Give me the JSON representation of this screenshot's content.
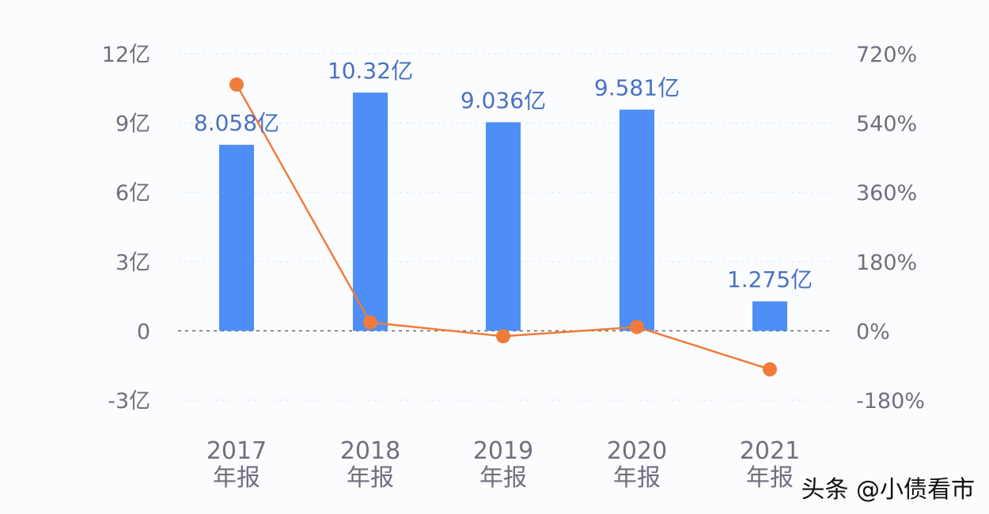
{
  "chart_data": {
    "type": "bar",
    "categories": [
      [
        "2017",
        "年报"
      ],
      [
        "2018",
        "年报"
      ],
      [
        "2019",
        "年报"
      ],
      [
        "2020",
        "年报"
      ],
      [
        "2021",
        "年报"
      ]
    ],
    "bar_values": [
      8.058,
      10.32,
      9.036,
      9.581,
      1.275
    ],
    "bar_labels": [
      "8.058亿",
      "10.32亿",
      "9.036亿",
      "9.581亿",
      "1.275亿"
    ],
    "line_values": [
      640,
      22,
      -14,
      10,
      -100
    ],
    "left_axis": {
      "ticks": [
        12,
        9,
        6,
        3,
        0,
        -3
      ],
      "tick_labels": [
        "12亿",
        "9亿",
        "6亿",
        "3亿",
        "0",
        "-3亿"
      ],
      "ylim": [
        -3,
        12
      ]
    },
    "right_axis": {
      "ticks": [
        720,
        540,
        360,
        180,
        0,
        -180
      ],
      "tick_labels": [
        "720%",
        "540%",
        "360%",
        "180%",
        "0%",
        "-180%"
      ],
      "ylim": [
        -180,
        720
      ]
    },
    "colors": {
      "bar": "#4d8ef7",
      "line": "#f07c3a",
      "label": "#4a72c2",
      "axis_text": "#6f6f7f",
      "grid": "#dfe7f0",
      "zero_line": "#666666"
    },
    "grid": true
  },
  "watermark": {
    "text": "头条 @小债看市"
  }
}
